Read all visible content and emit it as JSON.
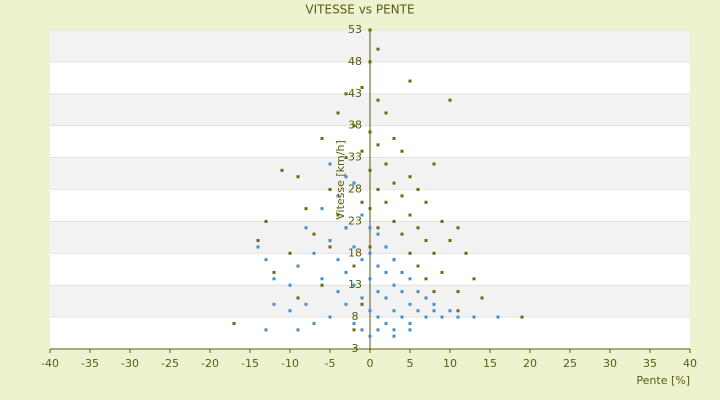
{
  "chart_data": {
    "type": "scatter",
    "title": "VITESSE vs PENTE",
    "x_label": "Pente [%]",
    "y_label": "Vitesse [km/h]",
    "xlim": [
      -40,
      40
    ],
    "xticks": [
      -40,
      -35,
      -30,
      -25,
      -20,
      -15,
      -10,
      -5,
      0,
      5,
      10,
      15,
      20,
      25,
      30,
      35,
      40
    ],
    "ylim": [
      3,
      53
    ],
    "yticks": [
      3,
      8,
      13,
      18,
      23,
      28,
      33,
      38,
      43,
      48,
      53
    ],
    "series": [
      {
        "color": "#6b6b00",
        "x": [
          -17,
          -14,
          -13,
          -12,
          -11,
          -10,
          -9,
          -9,
          -8,
          -7,
          -6,
          -6,
          -5,
          -5,
          -4,
          -4,
          -3,
          -3,
          -3,
          -2,
          -2,
          -2,
          -1,
          -1,
          -1,
          -1,
          0,
          0,
          0,
          0,
          0,
          0,
          1,
          1,
          1,
          1,
          1,
          2,
          2,
          2,
          2,
          3,
          3,
          3,
          3,
          4,
          4,
          4,
          4,
          5,
          5,
          5,
          5,
          6,
          6,
          6,
          7,
          7,
          7,
          8,
          8,
          8,
          9,
          9,
          10,
          10,
          11,
          11,
          12,
          13,
          14,
          19,
          11,
          -2
        ],
        "y": [
          7,
          20,
          23,
          15,
          31,
          18,
          30,
          11,
          25,
          21,
          36,
          13,
          28,
          19,
          40,
          24,
          43,
          33,
          22,
          38,
          29,
          16,
          44,
          34,
          26,
          10,
          53,
          48,
          37,
          31,
          25,
          19,
          50,
          42,
          35,
          28,
          22,
          40,
          32,
          26,
          19,
          36,
          29,
          23,
          17,
          34,
          27,
          21,
          15,
          45,
          30,
          24,
          18,
          28,
          22,
          16,
          26,
          20,
          14,
          32,
          18,
          12,
          23,
          15,
          42,
          20,
          22,
          12,
          18,
          14,
          11,
          8,
          9,
          6
        ]
      },
      {
        "color": "#3b8fd9",
        "x": [
          -14,
          -13,
          -12,
          -13,
          -10,
          -9,
          -8,
          -8,
          -7,
          -6,
          -6,
          -5,
          -5,
          -4,
          -4,
          -4,
          -3,
          -3,
          -3,
          -2,
          -2,
          -2,
          -2,
          -1,
          -1,
          -1,
          -1,
          0,
          0,
          0,
          0,
          0,
          1,
          1,
          1,
          1,
          1,
          2,
          2,
          2,
          2,
          3,
          3,
          3,
          3,
          4,
          4,
          4,
          5,
          5,
          5,
          6,
          6,
          7,
          7,
          8,
          8,
          9,
          10,
          11,
          13,
          16,
          -9,
          -7,
          3,
          5,
          -12,
          -3,
          -5,
          -10
        ],
        "y": [
          19,
          17,
          14,
          6,
          13,
          16,
          22,
          10,
          18,
          25,
          14,
          20,
          8,
          27,
          17,
          12,
          22,
          15,
          10,
          29,
          19,
          13,
          7,
          24,
          17,
          11,
          6,
          22,
          18,
          14,
          9,
          5,
          21,
          16,
          12,
          8,
          6,
          19,
          15,
          11,
          7,
          17,
          13,
          9,
          6,
          15,
          12,
          8,
          14,
          10,
          7,
          12,
          9,
          11,
          8,
          10,
          9,
          8,
          9,
          8,
          8,
          8,
          6,
          7,
          5,
          6,
          10,
          30,
          32,
          9
        ]
      }
    ]
  }
}
